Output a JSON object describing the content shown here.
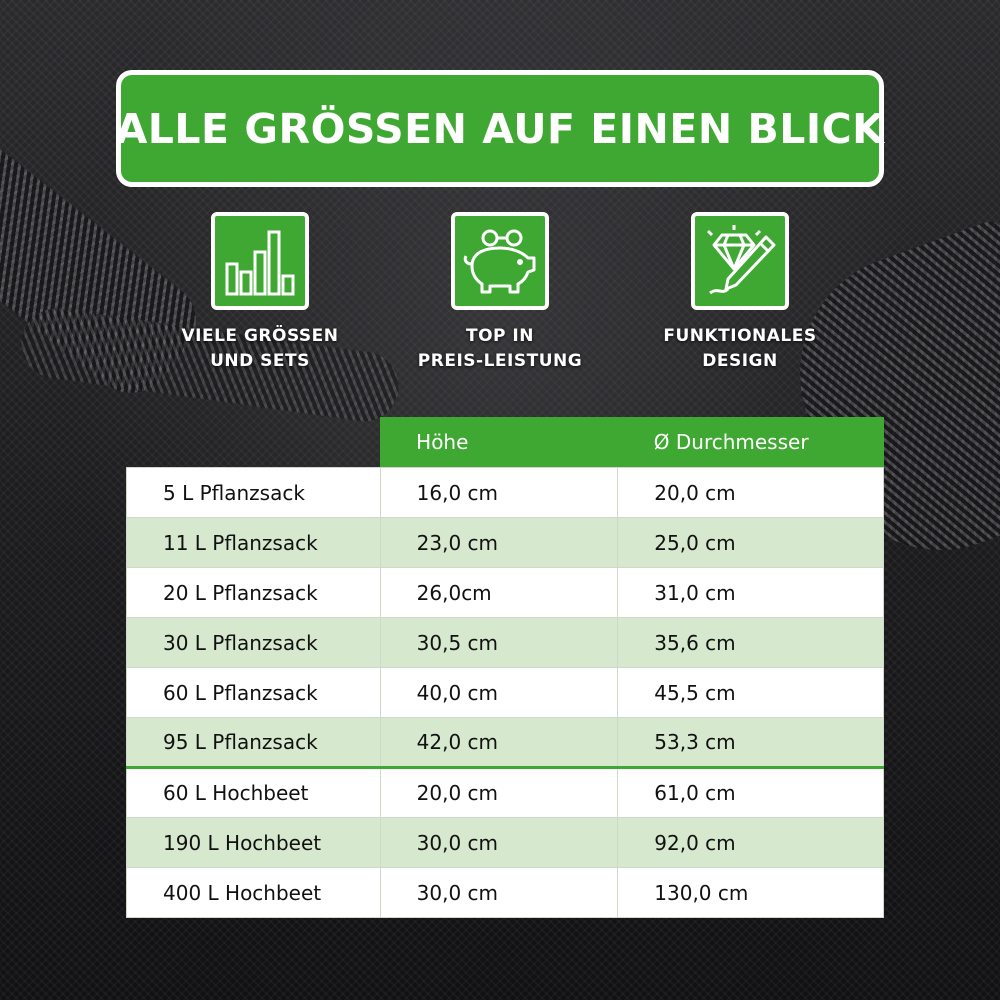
{
  "banner": {
    "title": "ALLE GRÖSSEN AUF EINEN BLICK"
  },
  "features": [
    {
      "icon": "bar-chart-icon",
      "line1": "VIELE GRÖSSEN",
      "line2": "UND SETS"
    },
    {
      "icon": "piggy-bank-icon",
      "line1": "TOP IN",
      "line2": "PREIS-LEISTUNG"
    },
    {
      "icon": "diamond-pencil-icon",
      "line1": "FUNKTIONALES",
      "line2": "DESIGN"
    }
  ],
  "table": {
    "headers": [
      "",
      "Höhe",
      "Ø Durchmesser"
    ],
    "rows": [
      [
        "5 L Pflanzsack",
        "16,0 cm",
        "20,0 cm"
      ],
      [
        "11 L Pflanzsack",
        "23,0 cm",
        "25,0 cm"
      ],
      [
        "20 L Pflanzsack",
        "26,0cm",
        "31,0 cm"
      ],
      [
        "30 L Pflanzsack",
        "30,5 cm",
        "35,6 cm"
      ],
      [
        "60 L Pflanzsack",
        "40,0 cm",
        "45,5 cm"
      ],
      [
        "95 L Pflanzsack",
        "42,0 cm",
        "53,3 cm"
      ],
      [
        "60 L Hochbeet",
        "20,0 cm",
        "61,0 cm"
      ],
      [
        "190 L Hochbeet",
        "30,0 cm",
        "92,0 cm"
      ],
      [
        "400 L Hochbeet",
        "30,0 cm",
        "130,0 cm"
      ]
    ]
  },
  "colors": {
    "accent": "#3ea833",
    "row_alt": "#d6e8cd",
    "row": "#ffffff",
    "text": "#111111"
  }
}
